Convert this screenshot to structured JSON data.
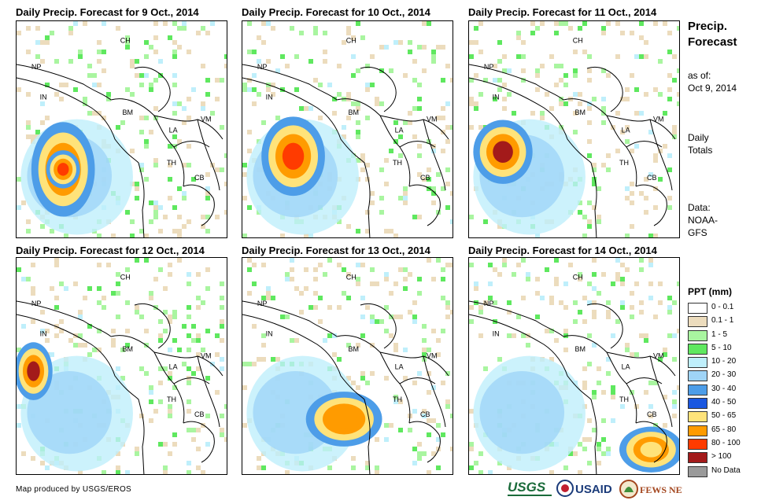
{
  "panels": [
    {
      "title": "Daily Precip. Forecast for 9 Oct., 2014",
      "blobs": [
        [
          0.22,
          0.68,
          0.3,
          0.62,
          0.09,
          0.65,
          "50-65"
        ],
        [
          0.22,
          0.68,
          0.16,
          0.25,
          0.02,
          0.24,
          "80-100"
        ]
      ]
    },
    {
      "title": "Daily Precip. Forecast for 10 Oct., 2014",
      "blobs": [
        [
          0.24,
          0.62,
          0.3,
          0.52,
          0.05,
          0.3,
          "80-100"
        ]
      ]
    },
    {
      "title": "Daily Precip. Forecast for 11 Oct., 2014",
      "blobs": [
        [
          0.16,
          0.6,
          0.28,
          0.42,
          0.05,
          0.22,
          ">100"
        ]
      ]
    },
    {
      "title": "Daily Precip. Forecast for 12 Oct., 2014",
      "blobs": [
        [
          0.08,
          0.52,
          0.18,
          0.38,
          0.02,
          0.22,
          ">100"
        ]
      ]
    },
    {
      "title": "Daily Precip. Forecast for 13 Oct., 2014",
      "blobs": [
        [
          0.48,
          0.74,
          0.36,
          0.36,
          0.02,
          0.12,
          "65-80"
        ]
      ]
    },
    {
      "title": "Daily Precip. Forecast for 14 Oct., 2014",
      "blobs": [
        [
          0.86,
          0.88,
          0.3,
          0.3,
          0.02,
          0.04,
          "50-65"
        ]
      ]
    }
  ],
  "country_labels": [
    "CH",
    "NP",
    "IN",
    "BM",
    "LA",
    "VM",
    "TH",
    "CB"
  ],
  "sidebar": {
    "title_line1": "Precip.",
    "title_line2": "Forecast",
    "asof_label": "as of:",
    "asof_date": "Oct 9, 2014",
    "totals_line1": "Daily",
    "totals_line2": "Totals",
    "data_line1": "Data:",
    "data_line2": "NOAA-",
    "data_line3": "GFS"
  },
  "legend": {
    "title": "PPT (mm)",
    "items": [
      {
        "label": "0 - 0.1",
        "color": "#ffffff"
      },
      {
        "label": "0.1 - 1",
        "color": "#ecdcbd"
      },
      {
        "label": "1 - 5",
        "color": "#a9f5a0"
      },
      {
        "label": "5 - 10",
        "color": "#5fe85f"
      },
      {
        "label": "10 - 20",
        "color": "#bfeffb"
      },
      {
        "label": "20 - 30",
        "color": "#9fd4f7"
      },
      {
        "label": "30 - 40",
        "color": "#4d9de8"
      },
      {
        "label": "40 - 50",
        "color": "#1a57e0"
      },
      {
        "label": "50 - 65",
        "color": "#ffe37a"
      },
      {
        "label": "65 - 80",
        "color": "#ff9b00"
      },
      {
        "label": "80 - 100",
        "color": "#ff3b00"
      },
      {
        "label": "> 100",
        "color": "#a31a1a"
      },
      {
        "label": "No Data",
        "color": "#9a9a9a"
      }
    ]
  },
  "credit": "Map produced by USGS/EROS",
  "logos": {
    "usgs": "USGS",
    "usaid": "USAID",
    "fewsnet": "FEWS NET"
  }
}
